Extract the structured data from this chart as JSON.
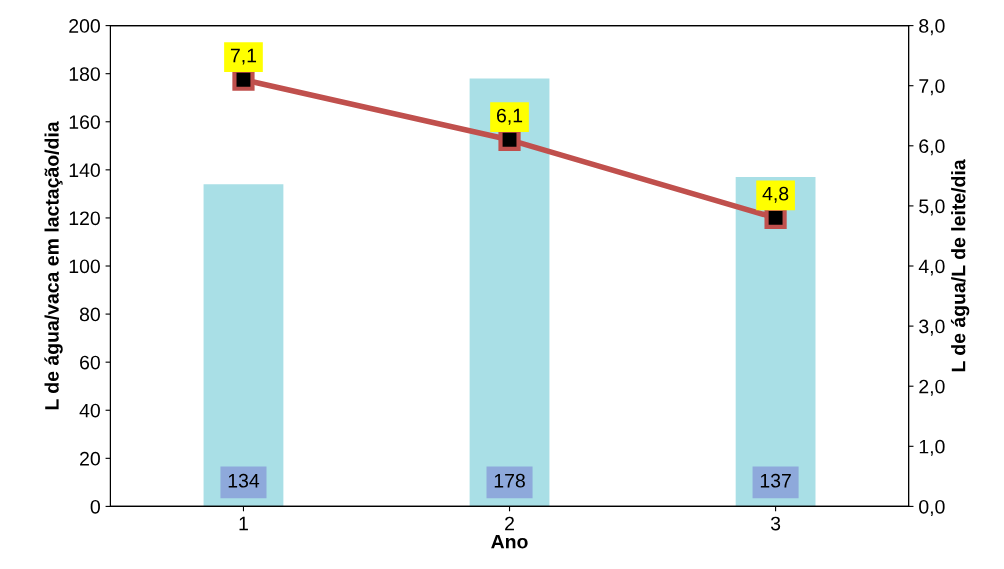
{
  "chart_data": {
    "type": "bar",
    "xlabel": "Ano",
    "ylabel": "L de água/vaca em lactação/dia",
    "y2label": "L de água/L de leite/dia",
    "categories": [
      "1",
      "2",
      "3"
    ],
    "series": [
      {
        "color": "#a9dfe6",
        "values": [
          134,
          178,
          137
        ],
        "value_labels": [
          "134",
          "178",
          "137"
        ]
      },
      {
        "type": "line",
        "axis": "y2",
        "color": "#c0504d",
        "marker": "square",
        "values": [
          7.1,
          6.1,
          4.8
        ],
        "value_labels": [
          "7,1",
          "6,1",
          "4,8"
        ]
      }
    ],
    "ylim": [
      0,
      200
    ],
    "yticks": [
      0,
      20,
      40,
      60,
      80,
      100,
      120,
      140,
      160,
      180,
      200
    ],
    "y2lim": [
      0,
      8
    ],
    "y2ticks": [
      {
        "value": 0,
        "label": "0,0"
      },
      {
        "value": 1,
        "label": "1,0"
      },
      {
        "value": 2,
        "label": "2,0"
      },
      {
        "value": 3,
        "label": "3,0"
      },
      {
        "value": 4,
        "label": "4,0"
      },
      {
        "value": 5,
        "label": "5,0"
      },
      {
        "value": 6,
        "label": "6,0"
      },
      {
        "value": 7,
        "label": "7,0"
      },
      {
        "value": 8,
        "label": "8,0"
      }
    ],
    "grid": false,
    "legend": false
  }
}
